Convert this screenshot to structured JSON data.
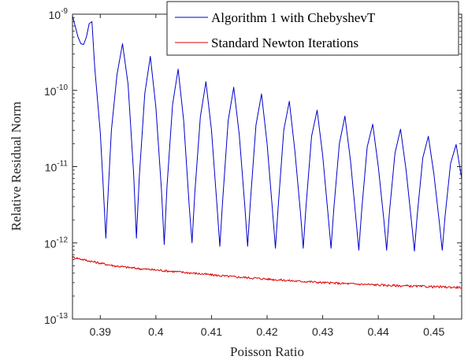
{
  "chart_data": {
    "type": "line",
    "xlabel": "Poisson Ratio",
    "ylabel": "Relative Residual Norm",
    "yscale": "log",
    "xlim": [
      0.385,
      0.455
    ],
    "ylim": [
      1e-13,
      1e-09
    ],
    "x_ticks": [
      0.39,
      0.4,
      0.41,
      0.42,
      0.43,
      0.44,
      0.45
    ],
    "x_tick_labels": [
      "0.39",
      "0.4",
      "0.41",
      "0.42",
      "0.43",
      "0.44",
      "0.45"
    ],
    "y_ticks": [
      {
        "value": 1e-13,
        "base": "10",
        "exp": "-13"
      },
      {
        "value": 1e-12,
        "base": "10",
        "exp": "-12"
      },
      {
        "value": 1e-11,
        "base": "10",
        "exp": "-11"
      },
      {
        "value": 1e-10,
        "base": "10",
        "exp": "-10"
      },
      {
        "value": 1e-09,
        "base": "10",
        "exp": "-9"
      }
    ],
    "grid": false,
    "legend_position": "top-right",
    "series": [
      {
        "name": "Algorithm 1 with ChebyshevT",
        "color": "#0000cc",
        "x": [
          0.385,
          0.386,
          0.3865,
          0.387,
          0.3875,
          0.388,
          0.3885,
          0.389,
          0.39,
          0.3905,
          0.391,
          0.3915,
          0.392,
          0.393,
          0.394,
          0.395,
          0.396,
          0.3965,
          0.397,
          0.398,
          0.399,
          0.4,
          0.401,
          0.4015,
          0.402,
          0.403,
          0.404,
          0.405,
          0.406,
          0.4065,
          0.407,
          0.408,
          0.409,
          0.41,
          0.411,
          0.4115,
          0.412,
          0.413,
          0.414,
          0.415,
          0.416,
          0.4165,
          0.417,
          0.418,
          0.419,
          0.42,
          0.421,
          0.4215,
          0.422,
          0.423,
          0.424,
          0.425,
          0.426,
          0.4265,
          0.427,
          0.428,
          0.429,
          0.43,
          0.431,
          0.4315,
          0.432,
          0.433,
          0.434,
          0.435,
          0.436,
          0.4365,
          0.437,
          0.438,
          0.439,
          0.44,
          0.441,
          0.4415,
          0.442,
          0.443,
          0.444,
          0.445,
          0.446,
          0.4465,
          0.447,
          0.448,
          0.449,
          0.45,
          0.451,
          0.4515,
          0.452,
          0.453,
          0.454,
          0.455
        ],
        "y": [
          9.5e-10,
          5e-10,
          4.1e-10,
          4e-10,
          5e-10,
          7.5e-10,
          8e-10,
          2e-10,
          2.8e-11,
          6e-12,
          1.15e-12,
          6e-12,
          3e-11,
          1.6e-10,
          4.1e-10,
          1.2e-10,
          8e-12,
          1.15e-12,
          7e-12,
          9e-11,
          2.8e-10,
          6e-11,
          5e-12,
          9.5e-13,
          5.5e-12,
          6.5e-11,
          1.9e-10,
          4e-11,
          3e-12,
          1e-12,
          4.5e-12,
          4.5e-11,
          1.3e-10,
          3e-11,
          3e-12,
          9e-13,
          3.5e-12,
          4e-11,
          1.1e-10,
          2.6e-11,
          3e-12,
          9e-13,
          3.5e-12,
          3.5e-11,
          9e-11,
          2e-11,
          2.5e-12,
          8.5e-13,
          3e-12,
          3e-11,
          7.2e-11,
          1.6e-11,
          2.5e-12,
          8.5e-13,
          3e-12,
          2.5e-11,
          5.5e-11,
          1.4e-11,
          2.2e-12,
          8.5e-13,
          2.8e-12,
          2e-11,
          4.6e-11,
          1.2e-11,
          2e-12,
          8e-13,
          2.6e-12,
          1.8e-11,
          3.6e-11,
          1e-11,
          2e-12,
          8e-13,
          2.5e-12,
          1.5e-11,
          3.1e-11,
          9e-12,
          1.8e-12,
          7.8e-13,
          2.3e-12,
          1.3e-11,
          2.5e-11,
          8e-12,
          1.8e-12,
          8e-13,
          2.2e-12,
          1.1e-11,
          1.95e-11,
          7e-12
        ]
      },
      {
        "name": "Standard Newton Iterations",
        "color": "#dd0000",
        "x": [
          0.385,
          0.3875,
          0.39,
          0.3925,
          0.395,
          0.3975,
          0.4,
          0.4025,
          0.405,
          0.4075,
          0.41,
          0.4125,
          0.415,
          0.4175,
          0.42,
          0.4225,
          0.425,
          0.4275,
          0.43,
          0.4325,
          0.435,
          0.4375,
          0.44,
          0.4425,
          0.445,
          0.4475,
          0.45,
          0.4525,
          0.455
        ],
        "y": [
          6.5e-13,
          5.9e-13,
          5.4e-13,
          5e-13,
          4.75e-13,
          4.55e-13,
          4.4e-13,
          4.25e-13,
          4.1e-13,
          3.95e-13,
          3.8e-13,
          3.65e-13,
          3.55e-13,
          3.45e-13,
          3.35e-13,
          3.25e-13,
          3.15e-13,
          3.1e-13,
          3e-13,
          2.95e-13,
          2.9e-13,
          2.85e-13,
          2.8e-13,
          2.75e-13,
          2.72e-13,
          2.68e-13,
          2.65e-13,
          2.62e-13,
          2.6e-13
        ]
      }
    ]
  }
}
